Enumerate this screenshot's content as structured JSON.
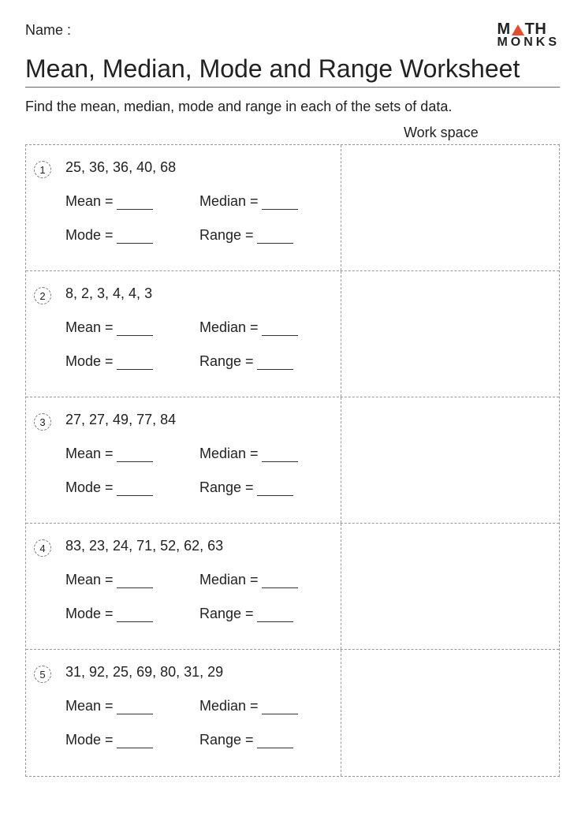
{
  "header": {
    "name_label": "Name :",
    "logo_top_left": "M",
    "logo_top_right": "TH",
    "logo_bottom": "MONKS",
    "logo_triangle_color": "#e44c2c"
  },
  "title": "Mean, Median, Mode and Range Worksheet",
  "instructions": "Find the mean, median, mode and range in each of the sets of data.",
  "workspace_label": "Work space",
  "labels": {
    "mean": "Mean =",
    "median": "Median =",
    "mode": "Mode =",
    "range": "Range ="
  },
  "questions": [
    {
      "num": "1",
      "data": "25, 36, 36, 40, 68"
    },
    {
      "num": "2",
      "data": "8, 2, 3, 4, 4, 3"
    },
    {
      "num": "3",
      "data": "27, 27, 49, 77, 84"
    },
    {
      "num": "4",
      "data": "83, 23, 24, 71, 52, 62, 63"
    },
    {
      "num": "5",
      "data": "31, 92, 25, 69, 80, 31, 29"
    }
  ]
}
